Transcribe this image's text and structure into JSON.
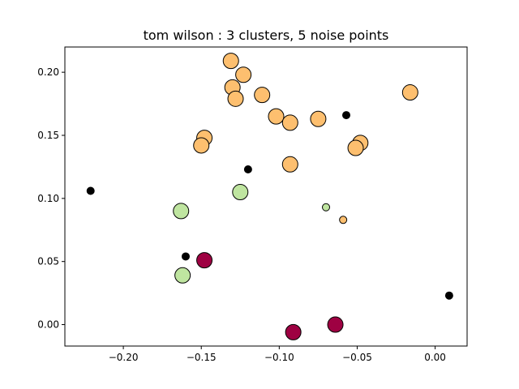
{
  "chart_data": {
    "type": "scatter",
    "title": "tom wilson : 3 clusters, 5 noise points",
    "xlabel": "",
    "ylabel": "",
    "xlim": [
      -0.2375,
      0.0205
    ],
    "ylim": [
      -0.017,
      0.22
    ],
    "x_ticks": [
      -0.2,
      -0.15,
      -0.1,
      -0.05,
      0.0
    ],
    "x_tick_labels": [
      "−0.20",
      "−0.15",
      "−0.10",
      "−0.05",
      "0.00"
    ],
    "y_ticks": [
      0.0,
      0.05,
      0.1,
      0.15,
      0.2
    ],
    "y_tick_labels": [
      "0.00",
      "0.05",
      "0.10",
      "0.15",
      "0.20"
    ],
    "grid": false,
    "legend": "none",
    "colors": {
      "cluster_orange": "#fdbf6f",
      "cluster_green": "#bfe5a0",
      "cluster_crimson": "#9e0142",
      "noise": "#000000",
      "edge": "#000000"
    },
    "series": [
      {
        "color": "#fdbf6f",
        "points": [
          {
            "x": -0.131,
            "y": 0.209,
            "core": true
          },
          {
            "x": -0.123,
            "y": 0.198,
            "core": true
          },
          {
            "x": -0.13,
            "y": 0.188,
            "core": true
          },
          {
            "x": -0.128,
            "y": 0.179,
            "core": true
          },
          {
            "x": -0.111,
            "y": 0.182,
            "core": true
          },
          {
            "x": -0.102,
            "y": 0.165,
            "core": true
          },
          {
            "x": -0.093,
            "y": 0.16,
            "core": true
          },
          {
            "x": -0.075,
            "y": 0.163,
            "core": true
          },
          {
            "x": -0.148,
            "y": 0.148,
            "core": true
          },
          {
            "x": -0.15,
            "y": 0.142,
            "core": true
          },
          {
            "x": -0.093,
            "y": 0.127,
            "core": true
          },
          {
            "x": -0.048,
            "y": 0.144,
            "core": true
          },
          {
            "x": -0.051,
            "y": 0.14,
            "core": true
          },
          {
            "x": -0.016,
            "y": 0.184,
            "core": true
          },
          {
            "x": -0.059,
            "y": 0.083,
            "core": false
          }
        ]
      },
      {
        "color": "#bfe5a0",
        "points": [
          {
            "x": -0.125,
            "y": 0.105,
            "core": true
          },
          {
            "x": -0.163,
            "y": 0.09,
            "core": true
          },
          {
            "x": -0.162,
            "y": 0.039,
            "core": true
          },
          {
            "x": -0.07,
            "y": 0.093,
            "core": false
          }
        ]
      },
      {
        "color": "#9e0142",
        "points": [
          {
            "x": -0.148,
            "y": 0.051,
            "core": true
          },
          {
            "x": -0.091,
            "y": -0.006,
            "core": true
          },
          {
            "x": -0.064,
            "y": 0.0,
            "core": true
          }
        ]
      }
    ],
    "noise": [
      {
        "x": -0.221,
        "y": 0.106
      },
      {
        "x": -0.057,
        "y": 0.166
      },
      {
        "x": -0.12,
        "y": 0.123
      },
      {
        "x": -0.16,
        "y": 0.054
      },
      {
        "x": 0.009,
        "y": 0.023
      }
    ]
  }
}
